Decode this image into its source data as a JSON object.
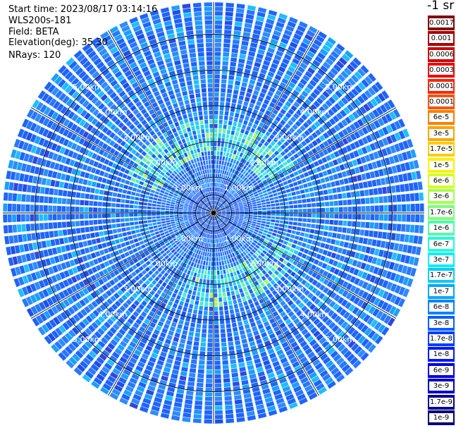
{
  "header": {
    "start_time": "Start time: 2023/08/17 03:14:16",
    "station": "WLS200s-181",
    "field": "Field: BETA",
    "elevation": "Elevation(deg): 35.30",
    "nrays": "NRays: 120"
  },
  "colorbar": {
    "unit": "-1 sr",
    "labels": [
      "0.0017",
      "0.001",
      "0.0006",
      "0.0003",
      "0.00017",
      "0.0001",
      "6e-5",
      "3e-5",
      "1.7e-5",
      "1e-5",
      "6e-6",
      "3e-6",
      "1.7e-6",
      "1e-6",
      "6e-7",
      "3e-7",
      "1.7e-7",
      "1e-7",
      "6e-8",
      "3e-8",
      "1.7e-8",
      "1e-8",
      "6e-9",
      "3e-9",
      "1.7e-9",
      "1e-9"
    ],
    "colors": [
      "#800000",
      "#a80000",
      "#d00000",
      "#f00000",
      "#ff2600",
      "#ff5200",
      "#ff7e00",
      "#ffa400",
      "#ffcc00",
      "#fff000",
      "#d4ff22",
      "#a8ff4f",
      "#7cff7c",
      "#4fffa8",
      "#22ffd4",
      "#00f0ff",
      "#00ccff",
      "#00a8ff",
      "#0084ff",
      "#0060ff",
      "#003cff",
      "#0018ff",
      "#0000e4",
      "#0000bc",
      "#000094",
      "#000070"
    ]
  },
  "chart_data": {
    "type": "heatmap",
    "subtype": "polar-ppi",
    "field": "BETA",
    "units": "sr-1",
    "n_rays": 120,
    "elevation_deg": 35.3,
    "range_rings": [
      "1.00km",
      "2.00km",
      "3.00km",
      "4.00km",
      "5.00km"
    ],
    "range_rings_km": [
      1,
      2,
      3,
      4,
      5
    ],
    "max_range_km": 5.9,
    "color_scale": "log",
    "color_range": [
      1e-09,
      0.0017
    ],
    "dominant_value_range": [
      1e-08,
      1e-07
    ],
    "enhanced_band": {
      "range_km": [
        1.6,
        2.6
      ],
      "value_range": [
        1.7e-07,
        1e-06
      ]
    },
    "grid": true
  }
}
